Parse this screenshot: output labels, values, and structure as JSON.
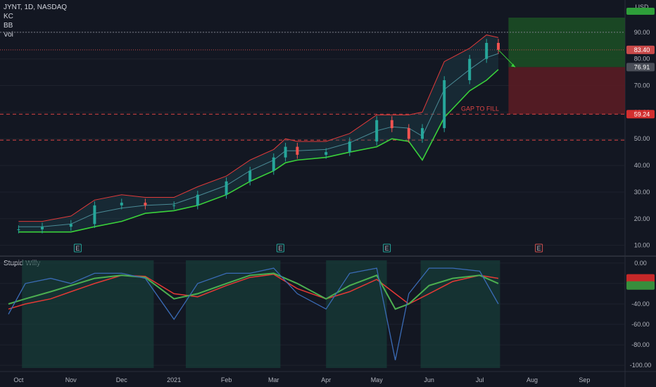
{
  "header": {
    "symbol": "JYNT, 1D, NASDAQ",
    "indicators": [
      "KC",
      "BB",
      "Vol"
    ],
    "currency": "USD",
    "oscillator_title": "Stupid Willy"
  },
  "colors": {
    "background": "#131722",
    "up_candle": "#26a69a",
    "down_candle": "#ef5350",
    "upper_band": "#e03a3a",
    "lower_band": "#3ad13a",
    "basis": "#4a8a95",
    "target_zone": "#1c4d25",
    "stop_zone": "#5a1c24",
    "oscillator_line": "#3a6bb5",
    "signal_green": "#4caf50",
    "signal_red": "#e53935"
  },
  "annotations": {
    "gap_label": "GAP TO FILL",
    "price_tag_last": "83.40",
    "price_tag_entry": "76.91",
    "price_tag_gap": "59.24",
    "earnings_marker": "E"
  },
  "chart_data": [
    {
      "type": "line",
      "name": "price",
      "title": "JYNT, 1D, NASDAQ",
      "x_ticks": [
        "Oct",
        "Nov",
        "Dec",
        "2021",
        "Feb",
        "Mar",
        "Apr",
        "May",
        "Jun",
        "Jul",
        "Aug",
        "Sep"
      ],
      "y_ticks": [
        10,
        20,
        30,
        40,
        50,
        60,
        70,
        80,
        90
      ],
      "ylim": [
        7,
        100
      ],
      "x": [
        "2020-10-01",
        "2020-10-15",
        "2020-11-01",
        "2020-11-15",
        "2020-12-01",
        "2020-12-15",
        "2021-01-01",
        "2021-01-15",
        "2021-02-01",
        "2021-02-15",
        "2021-03-01",
        "2021-03-08",
        "2021-03-15",
        "2021-04-01",
        "2021-04-15",
        "2021-05-01",
        "2021-05-10",
        "2021-05-20",
        "2021-05-28",
        "2021-06-10",
        "2021-06-25",
        "2021-07-05",
        "2021-07-12"
      ],
      "close": [
        16,
        17,
        18,
        25,
        26,
        25,
        25,
        29,
        34,
        38,
        43,
        47,
        44,
        45,
        49,
        57,
        54,
        50,
        54,
        72,
        80,
        86,
        83.4
      ],
      "upper_band": [
        19,
        19,
        21,
        27,
        29,
        28,
        28,
        32,
        36,
        42,
        46,
        50,
        49,
        49,
        52,
        59,
        59,
        59,
        60,
        79,
        84,
        89,
        88
      ],
      "lower_band": [
        15,
        15,
        15,
        17,
        19,
        22,
        23,
        25,
        29,
        34,
        38,
        41,
        42,
        43,
        45,
        47,
        50,
        49,
        42,
        58,
        68,
        72,
        76
      ],
      "levels": [
        {
          "price": 90,
          "label": "90.00"
        },
        {
          "price": 83.4,
          "label": "83.40"
        },
        {
          "price": 76.91,
          "label": "76.91"
        },
        {
          "price": 59.24,
          "label": "59.24"
        },
        {
          "price": 49.5,
          "label": ""
        }
      ],
      "earnings_dates": [
        "2020-11-05",
        "2021-03-05",
        "2021-05-07",
        "2021-08-05"
      ],
      "target_zone": {
        "from": 76.91,
        "to": 95.5
      },
      "stop_zone": {
        "from": 59.24,
        "to": 76.91
      }
    },
    {
      "type": "line",
      "name": "oscillator",
      "title": "Stupid Willy",
      "y_ticks": [
        0,
        -20,
        -40,
        -60,
        -80,
        -100
      ],
      "ylim": [
        -104,
        4
      ],
      "x": [
        "2020-09-25",
        "2020-10-05",
        "2020-10-20",
        "2020-11-01",
        "2020-11-15",
        "2020-12-01",
        "2020-12-15",
        "2021-01-01",
        "2021-01-15",
        "2021-02-01",
        "2021-02-15",
        "2021-03-01",
        "2021-03-15",
        "2021-04-01",
        "2021-04-15",
        "2021-05-01",
        "2021-05-12",
        "2021-05-20",
        "2021-06-01",
        "2021-06-15",
        "2021-07-01",
        "2021-07-12"
      ],
      "values": [
        -50,
        -20,
        -15,
        -20,
        -10,
        -10,
        -15,
        -55,
        -20,
        -10,
        -10,
        -5,
        -30,
        -45,
        -10,
        -5,
        -95,
        -30,
        -5,
        -5,
        -8,
        -40
      ],
      "slow": [
        -40,
        -35,
        -28,
        -22,
        -15,
        -12,
        -14,
        -35,
        -30,
        -20,
        -12,
        -10,
        -20,
        -35,
        -22,
        -12,
        -45,
        -40,
        -22,
        -15,
        -12,
        -20
      ],
      "mid": [
        -45,
        -40,
        -35,
        -28,
        -20,
        -12,
        -13,
        -30,
        -33,
        -22,
        -14,
        -11,
        -25,
        -35,
        -28,
        -16,
        -30,
        -40,
        -30,
        -18,
        -12,
        -15
      ]
    }
  ]
}
